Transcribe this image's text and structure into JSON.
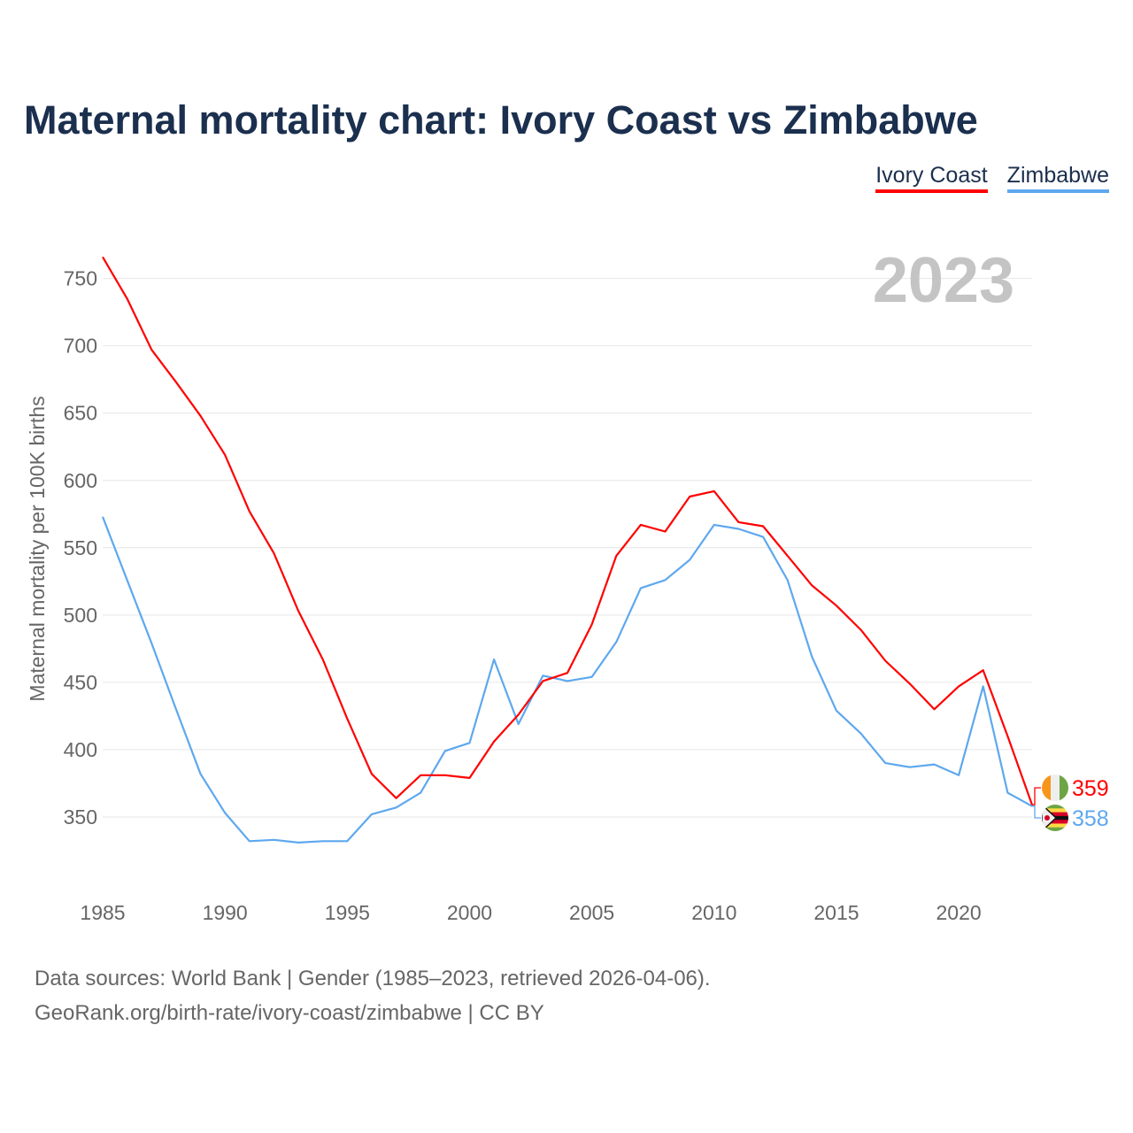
{
  "title": "Maternal mortality chart: Ivory Coast vs Zimbabwe",
  "footer": {
    "line1": "Data sources: World Bank | Gender (1985–2023, retrieved 2026-04-06).",
    "line2": "GeoRank.org/birth-rate/ivory-coast/zimbabwe | CC BY"
  },
  "chart_data": {
    "type": "line",
    "title": "Maternal mortality chart: Ivory Coast vs Zimbabwe",
    "xlabel": "",
    "ylabel": "Maternal mortality per 100K births",
    "year_label": "2023",
    "legend_position": "top-right",
    "grid": true,
    "xlim": [
      1985,
      2023
    ],
    "ylim": [
      300,
      780
    ],
    "x_ticks": [
      "1985",
      "1990",
      "1995",
      "2000",
      "2005",
      "2010",
      "2015",
      "2020"
    ],
    "y_ticks": [
      "350",
      "400",
      "450",
      "500",
      "550",
      "600",
      "650",
      "700",
      "750"
    ],
    "x": [
      1985,
      1986,
      1987,
      1988,
      1989,
      1990,
      1991,
      1992,
      1993,
      1994,
      1995,
      1996,
      1997,
      1998,
      1999,
      2000,
      2001,
      2002,
      2003,
      2004,
      2005,
      2006,
      2007,
      2008,
      2009,
      2010,
      2011,
      2012,
      2013,
      2014,
      2015,
      2016,
      2017,
      2018,
      2019,
      2020,
      2021,
      2022,
      2023
    ],
    "series": [
      {
        "name": "Ivory Coast",
        "color": "#ff0000",
        "end_label": "359",
        "flag": "ivory-coast-flag",
        "values": [
          766,
          735,
          697,
          673,
          648,
          619,
          577,
          546,
          503,
          467,
          423,
          382,
          364,
          381,
          381,
          379,
          406,
          426,
          451,
          457,
          493,
          544,
          567,
          562,
          588,
          592,
          569,
          566,
          544,
          522,
          507,
          489,
          466,
          449,
          430,
          447,
          459,
          410,
          359
        ]
      },
      {
        "name": "Zimbabwe",
        "color": "#5ea8ee",
        "end_label": "358",
        "flag": "zimbabwe-flag",
        "values": [
          573,
          526,
          479,
          430,
          382,
          353,
          332,
          333,
          331,
          332,
          332,
          352,
          357,
          368,
          399,
          405,
          467,
          419,
          455,
          451,
          454,
          480,
          520,
          526,
          541,
          567,
          564,
          558,
          526,
          469,
          429,
          412,
          390,
          387,
          389,
          381,
          447,
          368,
          358
        ]
      }
    ]
  }
}
